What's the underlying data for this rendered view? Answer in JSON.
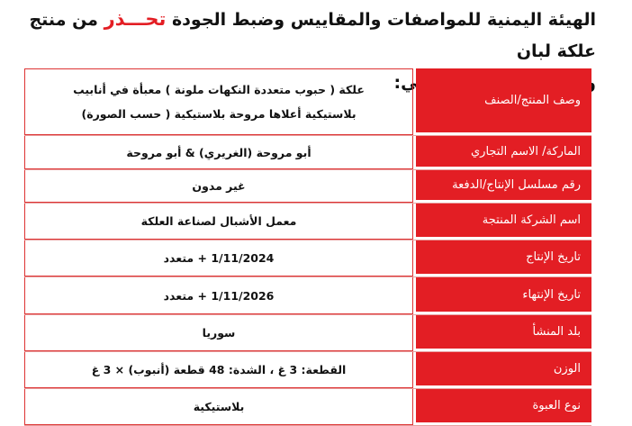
{
  "heading": {
    "part1": "الهيئة اليمنية للمواصفات والمقاييس وضبط الجودة",
    "warn": "تحـــذر",
    "part2": "من منتج علكة لبان",
    "line2": "والموضح بياناته كالتالي:"
  },
  "table": [
    {
      "label": "وصف المنتج/الصنف",
      "value_lines": [
        "علكة ( حبوب متعددة النكهات ملونة ) معبأة في أنابيب",
        "بلاستيكية أعلاها مروحة بلاستيكية ( حسب الصورة)"
      ]
    },
    {
      "label": "الماركة/ الاسم التجاري",
      "value": "أبو مروحة (الغريري) & أبو مروحة"
    },
    {
      "label": "رقم مسلسل الإنتاج/الدفعة",
      "value": "غير مدون"
    },
    {
      "label": "اسم الشركة المنتجة",
      "value": "معمل الأشبال لصناعة العلكة"
    },
    {
      "label": "تاريخ الإنتاج",
      "value": "1/11/2024 + متعدد"
    },
    {
      "label": "تاريخ الإنتهاء",
      "value": "1/11/2026 + متعدد"
    },
    {
      "label": "بلد المنشأ",
      "value": "سوريا"
    },
    {
      "label": "الوزن",
      "value": "القطعة: 3 غ ، الشدة: 48 قطعة (أنبوب) × 3 غ"
    },
    {
      "label": "نوع العبوة",
      "value": "بلاستيكية"
    }
  ],
  "colors": {
    "accent": "#e31e24"
  }
}
